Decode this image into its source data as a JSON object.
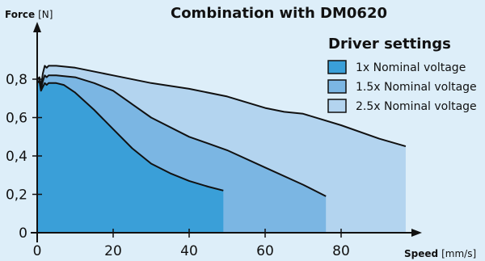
{
  "chart_data": {
    "type": "area",
    "title": "Combination with DM0620",
    "y_axis_label": {
      "name": "Force",
      "unit": "[N]"
    },
    "x_axis_label": {
      "name": "Speed",
      "unit": "[mm/s]"
    },
    "xlim": [
      0,
      100
    ],
    "ylim": [
      0,
      0.95
    ],
    "x_ticks": [
      "0",
      "20",
      "40",
      "60",
      "80"
    ],
    "y_ticks": [
      "0",
      "0,2",
      "0,4",
      "0,6",
      "0,8"
    ],
    "x_tick_values": [
      0,
      20,
      40,
      60,
      80
    ],
    "y_tick_values": [
      0,
      0.2,
      0.4,
      0.6,
      0.8
    ],
    "legend": {
      "title": "Driver settings",
      "placement": "top-right"
    },
    "grid": false,
    "series": [
      {
        "name": "2.5x Nominal voltage",
        "color": "#b3d4ef",
        "x": [
          0,
          0.6,
          1,
          1.5,
          2,
          2.5,
          3,
          5,
          10,
          20,
          30,
          40,
          50,
          60,
          65,
          70,
          80,
          90,
          97
        ],
        "y": [
          0.8,
          0.81,
          0.76,
          0.83,
          0.87,
          0.86,
          0.87,
          0.87,
          0.86,
          0.82,
          0.78,
          0.75,
          0.71,
          0.65,
          0.63,
          0.62,
          0.56,
          0.49,
          0.45
        ]
      },
      {
        "name": "1.5x Nominal voltage",
        "color": "#7bb6e3",
        "x": [
          0,
          0.6,
          1,
          1.5,
          2,
          2.5,
          3,
          5,
          10,
          15,
          20,
          25,
          30,
          40,
          50,
          60,
          70,
          76
        ],
        "y": [
          0.79,
          0.79,
          0.75,
          0.79,
          0.82,
          0.81,
          0.82,
          0.82,
          0.81,
          0.78,
          0.74,
          0.67,
          0.6,
          0.5,
          0.43,
          0.34,
          0.25,
          0.19
        ]
      },
      {
        "name": "1x Nominal voltage",
        "color": "#3a9fd8",
        "x": [
          0,
          0.6,
          1,
          1.5,
          2,
          2.5,
          3,
          5,
          7,
          10,
          15,
          20,
          25,
          30,
          35,
          40,
          45,
          49
        ],
        "y": [
          0.78,
          0.79,
          0.74,
          0.76,
          0.78,
          0.77,
          0.78,
          0.78,
          0.77,
          0.73,
          0.64,
          0.54,
          0.44,
          0.36,
          0.31,
          0.27,
          0.24,
          0.22
        ]
      }
    ]
  }
}
